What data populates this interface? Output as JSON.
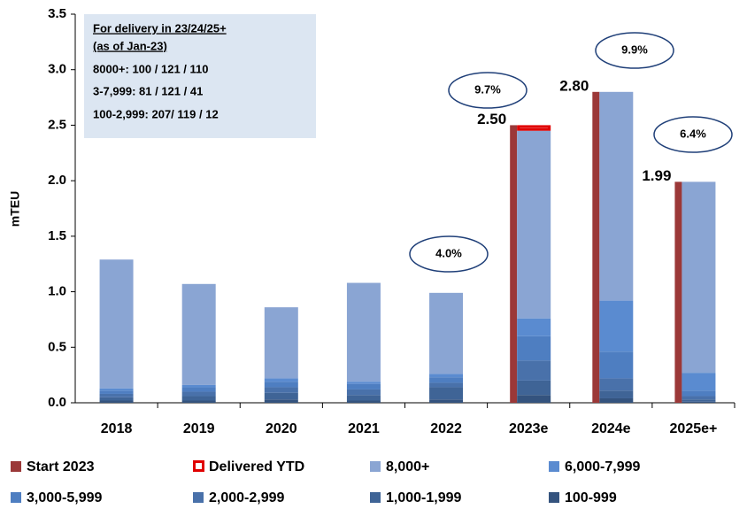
{
  "chart_data": {
    "type": "bar",
    "ylabel": "mTEU",
    "categories": [
      "2018",
      "2019",
      "2020",
      "2021",
      "2022",
      "2023e",
      "2024e",
      "2025e+"
    ],
    "ylim": [
      0,
      3.5
    ],
    "yticks": [
      {
        "value": 0,
        "label": "0.0"
      },
      {
        "value": 0.5,
        "label": "0.5"
      },
      {
        "value": 1,
        "label": "1.0"
      },
      {
        "value": 1.5,
        "label": "1.5"
      },
      {
        "value": 2,
        "label": "2.0"
      },
      {
        "value": 2.5,
        "label": "2.5"
      },
      {
        "value": 3,
        "label": "3.0"
      },
      {
        "value": 3.5,
        "label": "3.5"
      }
    ],
    "series": [
      {
        "name": "Start 2023",
        "color": "#9b3838",
        "side_bar": true,
        "values": [
          null,
          null,
          null,
          null,
          null,
          2.5,
          2.8,
          1.99
        ],
        "value_labels": [
          null,
          null,
          null,
          null,
          null,
          "2.50",
          "2.80",
          "1.99"
        ]
      },
      {
        "name": "Delivered YTD",
        "color": "#e00000",
        "outline": true,
        "values": [
          null,
          null,
          null,
          null,
          null,
          0.05,
          null,
          null
        ]
      },
      {
        "name": "8,000+",
        "color": "#8aa5d3",
        "values": [
          1.16,
          0.91,
          0.64,
          0.89,
          0.73,
          1.69,
          1.88,
          1.72
        ]
      },
      {
        "name": "6,000-7,999",
        "color": "#5a8bd0",
        "values": [
          0.02,
          0.02,
          0.03,
          0.02,
          0.03,
          0.16,
          0.46,
          0.16
        ]
      },
      {
        "name": "3,000-5,999",
        "color": "#4e7ec1",
        "values": [
          0.03,
          0.04,
          0.05,
          0.05,
          0.05,
          0.22,
          0.24,
          0.05
        ]
      },
      {
        "name": "2,000-2,999",
        "color": "#4971aa",
        "values": [
          0.03,
          0.04,
          0.05,
          0.05,
          0.04,
          0.18,
          0.11,
          0.03
        ]
      },
      {
        "name": "1,000-1,999",
        "color": "#3f6496",
        "values": [
          0.03,
          0.04,
          0.06,
          0.05,
          0.11,
          0.13,
          0.07,
          0.02
        ]
      },
      {
        "name": "100-999",
        "color": "#34537e",
        "values": [
          0.02,
          0.02,
          0.03,
          0.02,
          0.03,
          0.07,
          0.04,
          0.01
        ]
      }
    ],
    "annotations": [
      {
        "text": "4.0%",
        "category": "2022"
      },
      {
        "text": "9.7%",
        "category": "2023e"
      },
      {
        "text": "9.9%",
        "category": "2024e"
      },
      {
        "text": "6.4%",
        "category": "2025e+"
      }
    ],
    "textbox": {
      "heading": [
        "For delivery in 23/24/25+",
        "(as of Jan-23)"
      ],
      "lines": [
        "8000+: 100 / 121 / 110",
        "3-7,999: 81 / 121 / 41",
        "100-2,999: 207/ 119 / 12"
      ]
    }
  }
}
